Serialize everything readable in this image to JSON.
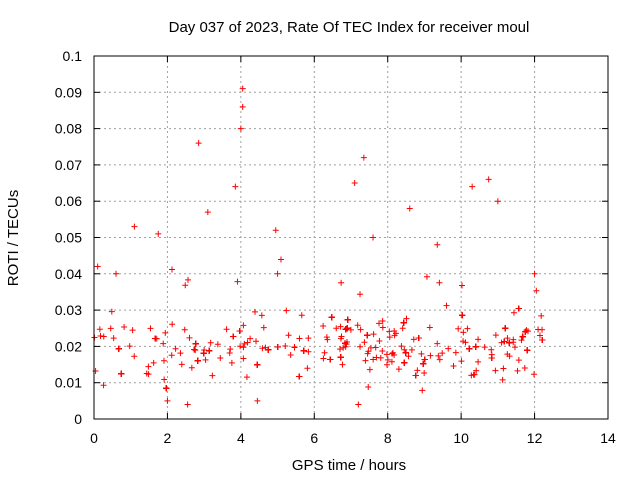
{
  "chart_data": {
    "type": "scatter",
    "title": "Day 037 of 2023, Rate Of TEC Index for receiver moul",
    "xlabel": "GPS time / hours",
    "ylabel": "ROTI / TECUs",
    "xlim": [
      0,
      14
    ],
    "ylim": [
      0,
      0.1
    ],
    "xticks": [
      "0",
      "2",
      "4",
      "6",
      "8",
      "10",
      "12",
      "14"
    ],
    "yticks": [
      "0",
      "0.01",
      "0.02",
      "0.03",
      "0.04",
      "0.05",
      "0.06",
      "0.07",
      "0.08",
      "0.09",
      "0.1"
    ],
    "grid": true,
    "marker": "+",
    "color": "#ff0000",
    "series": [
      {
        "name": "ROTI",
        "x_range": [
          0,
          12.25
        ],
        "baseline_range": [
          0.005,
          0.033
        ],
        "notable_points": [
          {
            "x": 4.05,
            "y": 0.091
          },
          {
            "x": 4.05,
            "y": 0.086
          },
          {
            "x": 4.0,
            "y": 0.08
          },
          {
            "x": 2.85,
            "y": 0.076
          },
          {
            "x": 7.35,
            "y": 0.072
          },
          {
            "x": 7.1,
            "y": 0.065
          },
          {
            "x": 10.75,
            "y": 0.066
          },
          {
            "x": 10.3,
            "y": 0.064
          },
          {
            "x": 3.85,
            "y": 0.064
          },
          {
            "x": 8.6,
            "y": 0.058
          },
          {
            "x": 3.1,
            "y": 0.057
          },
          {
            "x": 11.0,
            "y": 0.06
          },
          {
            "x": 1.1,
            "y": 0.053
          },
          {
            "x": 0.1,
            "y": 0.042
          },
          {
            "x": 0.6,
            "y": 0.04
          },
          {
            "x": 1.75,
            "y": 0.051
          },
          {
            "x": 4.95,
            "y": 0.052
          },
          {
            "x": 5.0,
            "y": 0.04
          },
          {
            "x": 7.6,
            "y": 0.05
          },
          {
            "x": 9.35,
            "y": 0.048
          },
          {
            "x": 12.0,
            "y": 0.04
          },
          {
            "x": 2.0,
            "y": 0.005
          },
          {
            "x": 2.55,
            "y": 0.004
          },
          {
            "x": 7.2,
            "y": 0.004
          },
          {
            "x": 4.45,
            "y": 0.005
          }
        ]
      }
    ]
  }
}
